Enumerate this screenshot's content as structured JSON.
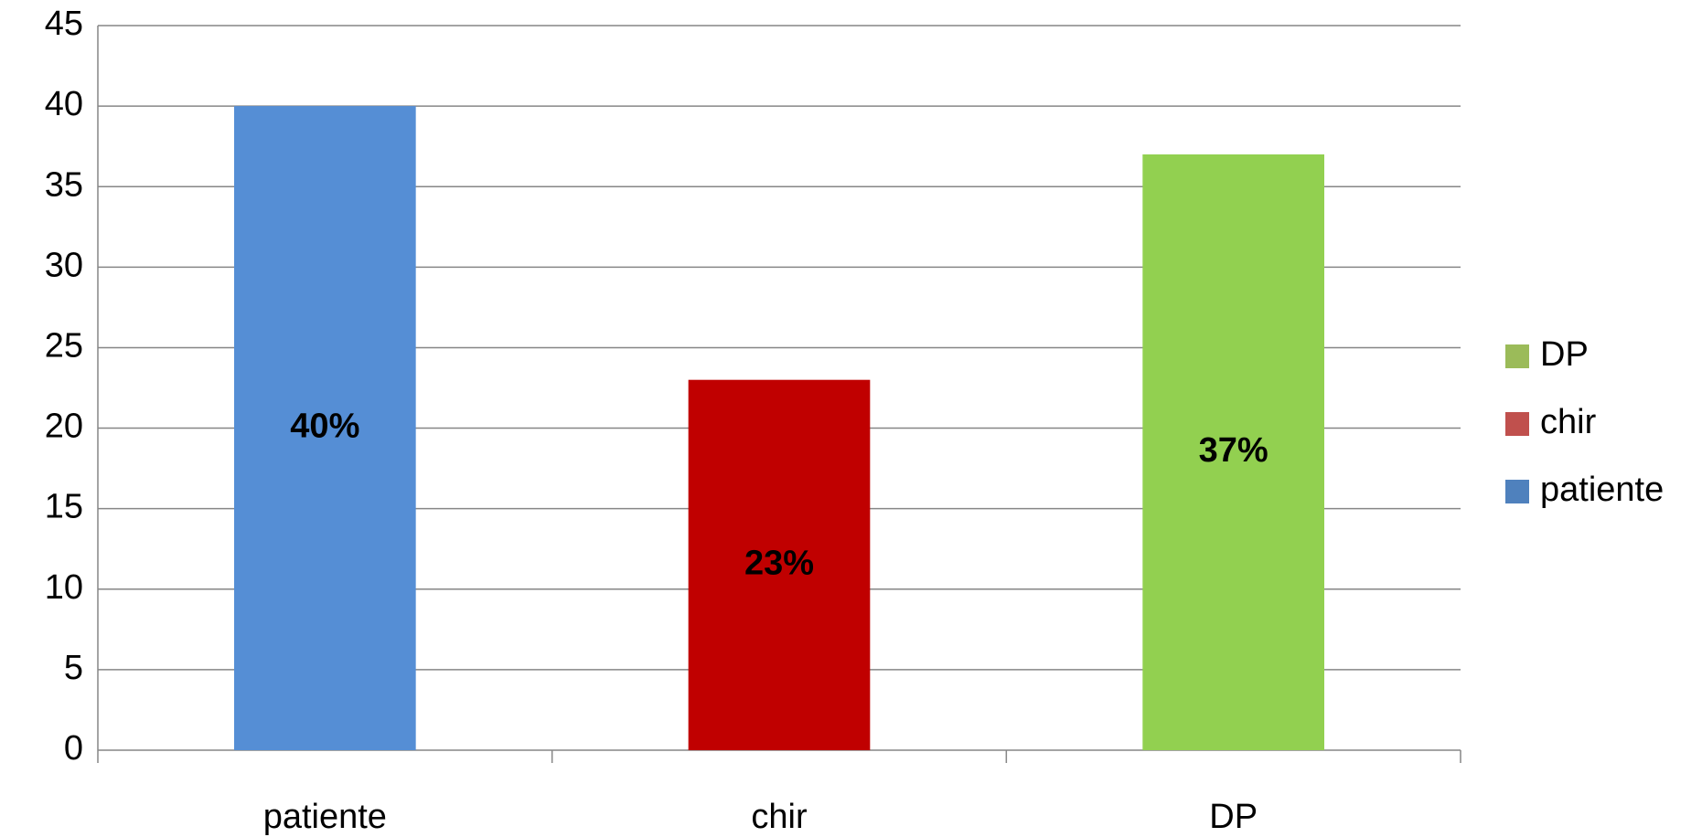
{
  "chart_data": {
    "type": "bar",
    "categories": [
      "patiente",
      "chir",
      "DP"
    ],
    "values": [
      40,
      23,
      37
    ],
    "value_labels": [
      "40%",
      "23%",
      "37%"
    ],
    "colors": [
      "#558ed5",
      "#c00000",
      "#92d050"
    ],
    "value_label_colors": [
      "#ffffff",
      "#ffffff",
      "#254061"
    ],
    "legend_colors": [
      "#4f81bd",
      "#c0504d",
      "#9bbb59"
    ],
    "ylim": [
      0,
      45
    ],
    "yticks": [
      0,
      5,
      10,
      15,
      20,
      25,
      30,
      35,
      40,
      45
    ],
    "grid": true,
    "legend": "right"
  }
}
